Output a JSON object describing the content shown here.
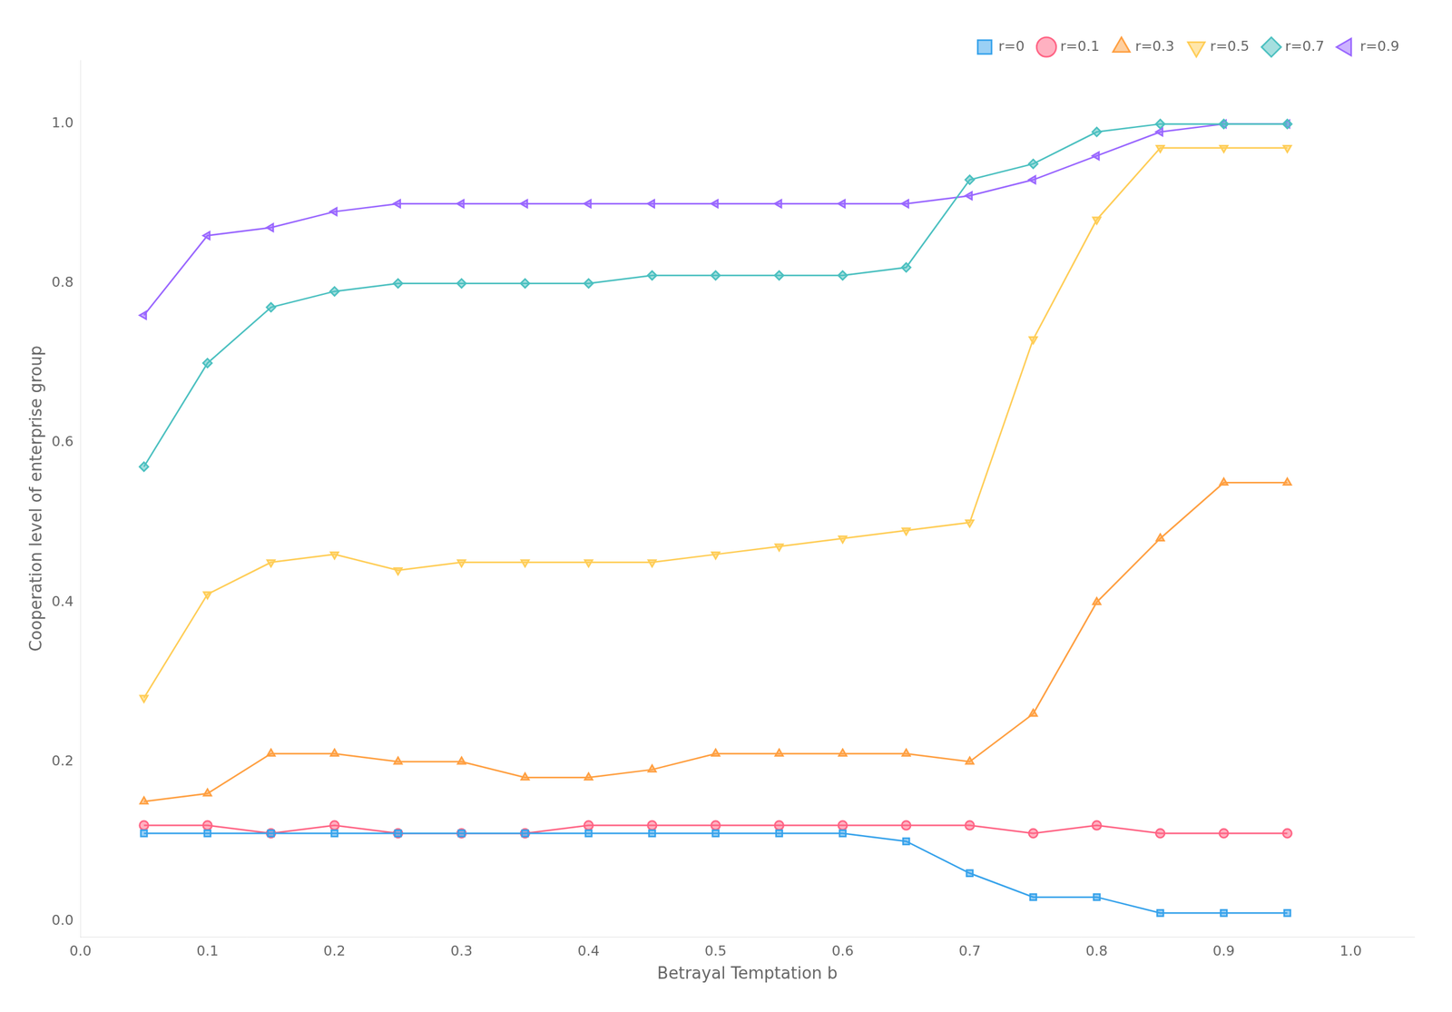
{
  "chart_data": {
    "type": "line",
    "x": [
      0.05,
      0.1,
      0.15,
      0.2,
      0.25,
      0.3,
      0.35,
      0.4,
      0.45,
      0.5,
      0.55,
      0.6,
      0.65,
      0.7,
      0.75,
      0.8,
      0.85,
      0.9,
      0.95
    ],
    "series": [
      {
        "name": "r=0",
        "marker": "square",
        "values": [
          0.11,
          0.11,
          0.11,
          0.11,
          0.11,
          0.11,
          0.11,
          0.11,
          0.11,
          0.11,
          0.11,
          0.11,
          0.1,
          0.06,
          0.03,
          0.03,
          0.01,
          0.01,
          0.01
        ]
      },
      {
        "name": "r=0.1",
        "marker": "circle",
        "values": [
          0.12,
          0.12,
          0.11,
          0.12,
          0.11,
          0.11,
          0.11,
          0.12,
          0.12,
          0.12,
          0.12,
          0.12,
          0.12,
          0.12,
          0.11,
          0.12,
          0.11,
          0.11,
          0.11
        ]
      },
      {
        "name": "r=0.3",
        "marker": "triangle-up",
        "values": [
          0.15,
          0.16,
          0.21,
          0.21,
          0.2,
          0.2,
          0.18,
          0.18,
          0.19,
          0.21,
          0.21,
          0.21,
          0.21,
          0.2,
          0.26,
          0.4,
          0.48,
          0.55,
          0.55
        ]
      },
      {
        "name": "r=0.5",
        "marker": "triangle-down",
        "values": [
          0.28,
          0.41,
          0.45,
          0.46,
          0.44,
          0.45,
          0.45,
          0.45,
          0.45,
          0.46,
          0.47,
          0.48,
          0.49,
          0.5,
          0.73,
          0.88,
          0.97,
          0.97,
          0.97
        ]
      },
      {
        "name": "r=0.7",
        "marker": "diamond",
        "values": [
          0.57,
          0.7,
          0.77,
          0.79,
          0.8,
          0.8,
          0.8,
          0.8,
          0.81,
          0.81,
          0.81,
          0.81,
          0.82,
          0.93,
          0.95,
          0.99,
          1.0,
          1.0,
          1.0
        ]
      },
      {
        "name": "r=0.9",
        "marker": "triangle-left",
        "values": [
          0.76,
          0.86,
          0.87,
          0.89,
          0.9,
          0.9,
          0.9,
          0.9,
          0.9,
          0.9,
          0.9,
          0.9,
          0.9,
          0.91,
          0.93,
          0.96,
          0.99,
          1.0,
          1.0
        ]
      }
    ],
    "x_label": "Betrayal Temptation b",
    "y_label": "Cooperation level of enterprise group",
    "xlim": [
      0.0,
      1.05
    ],
    "ylim": [
      -0.02,
      1.08
    ],
    "xticks": [
      {
        "value": 0,
        "label": "0.0"
      },
      0.1,
      0.2,
      0.3,
      0.4,
      0.5,
      0.6,
      0.7,
      0.8,
      0.9,
      {
        "value": 1,
        "label": "1.0"
      }
    ],
    "yticks": [
      {
        "value": 0,
        "label": "0.0"
      },
      0.2,
      0.4,
      0.6,
      0.8,
      {
        "value": 1,
        "label": "1.0"
      }
    ],
    "legend": "upper right",
    "grid": false
  }
}
